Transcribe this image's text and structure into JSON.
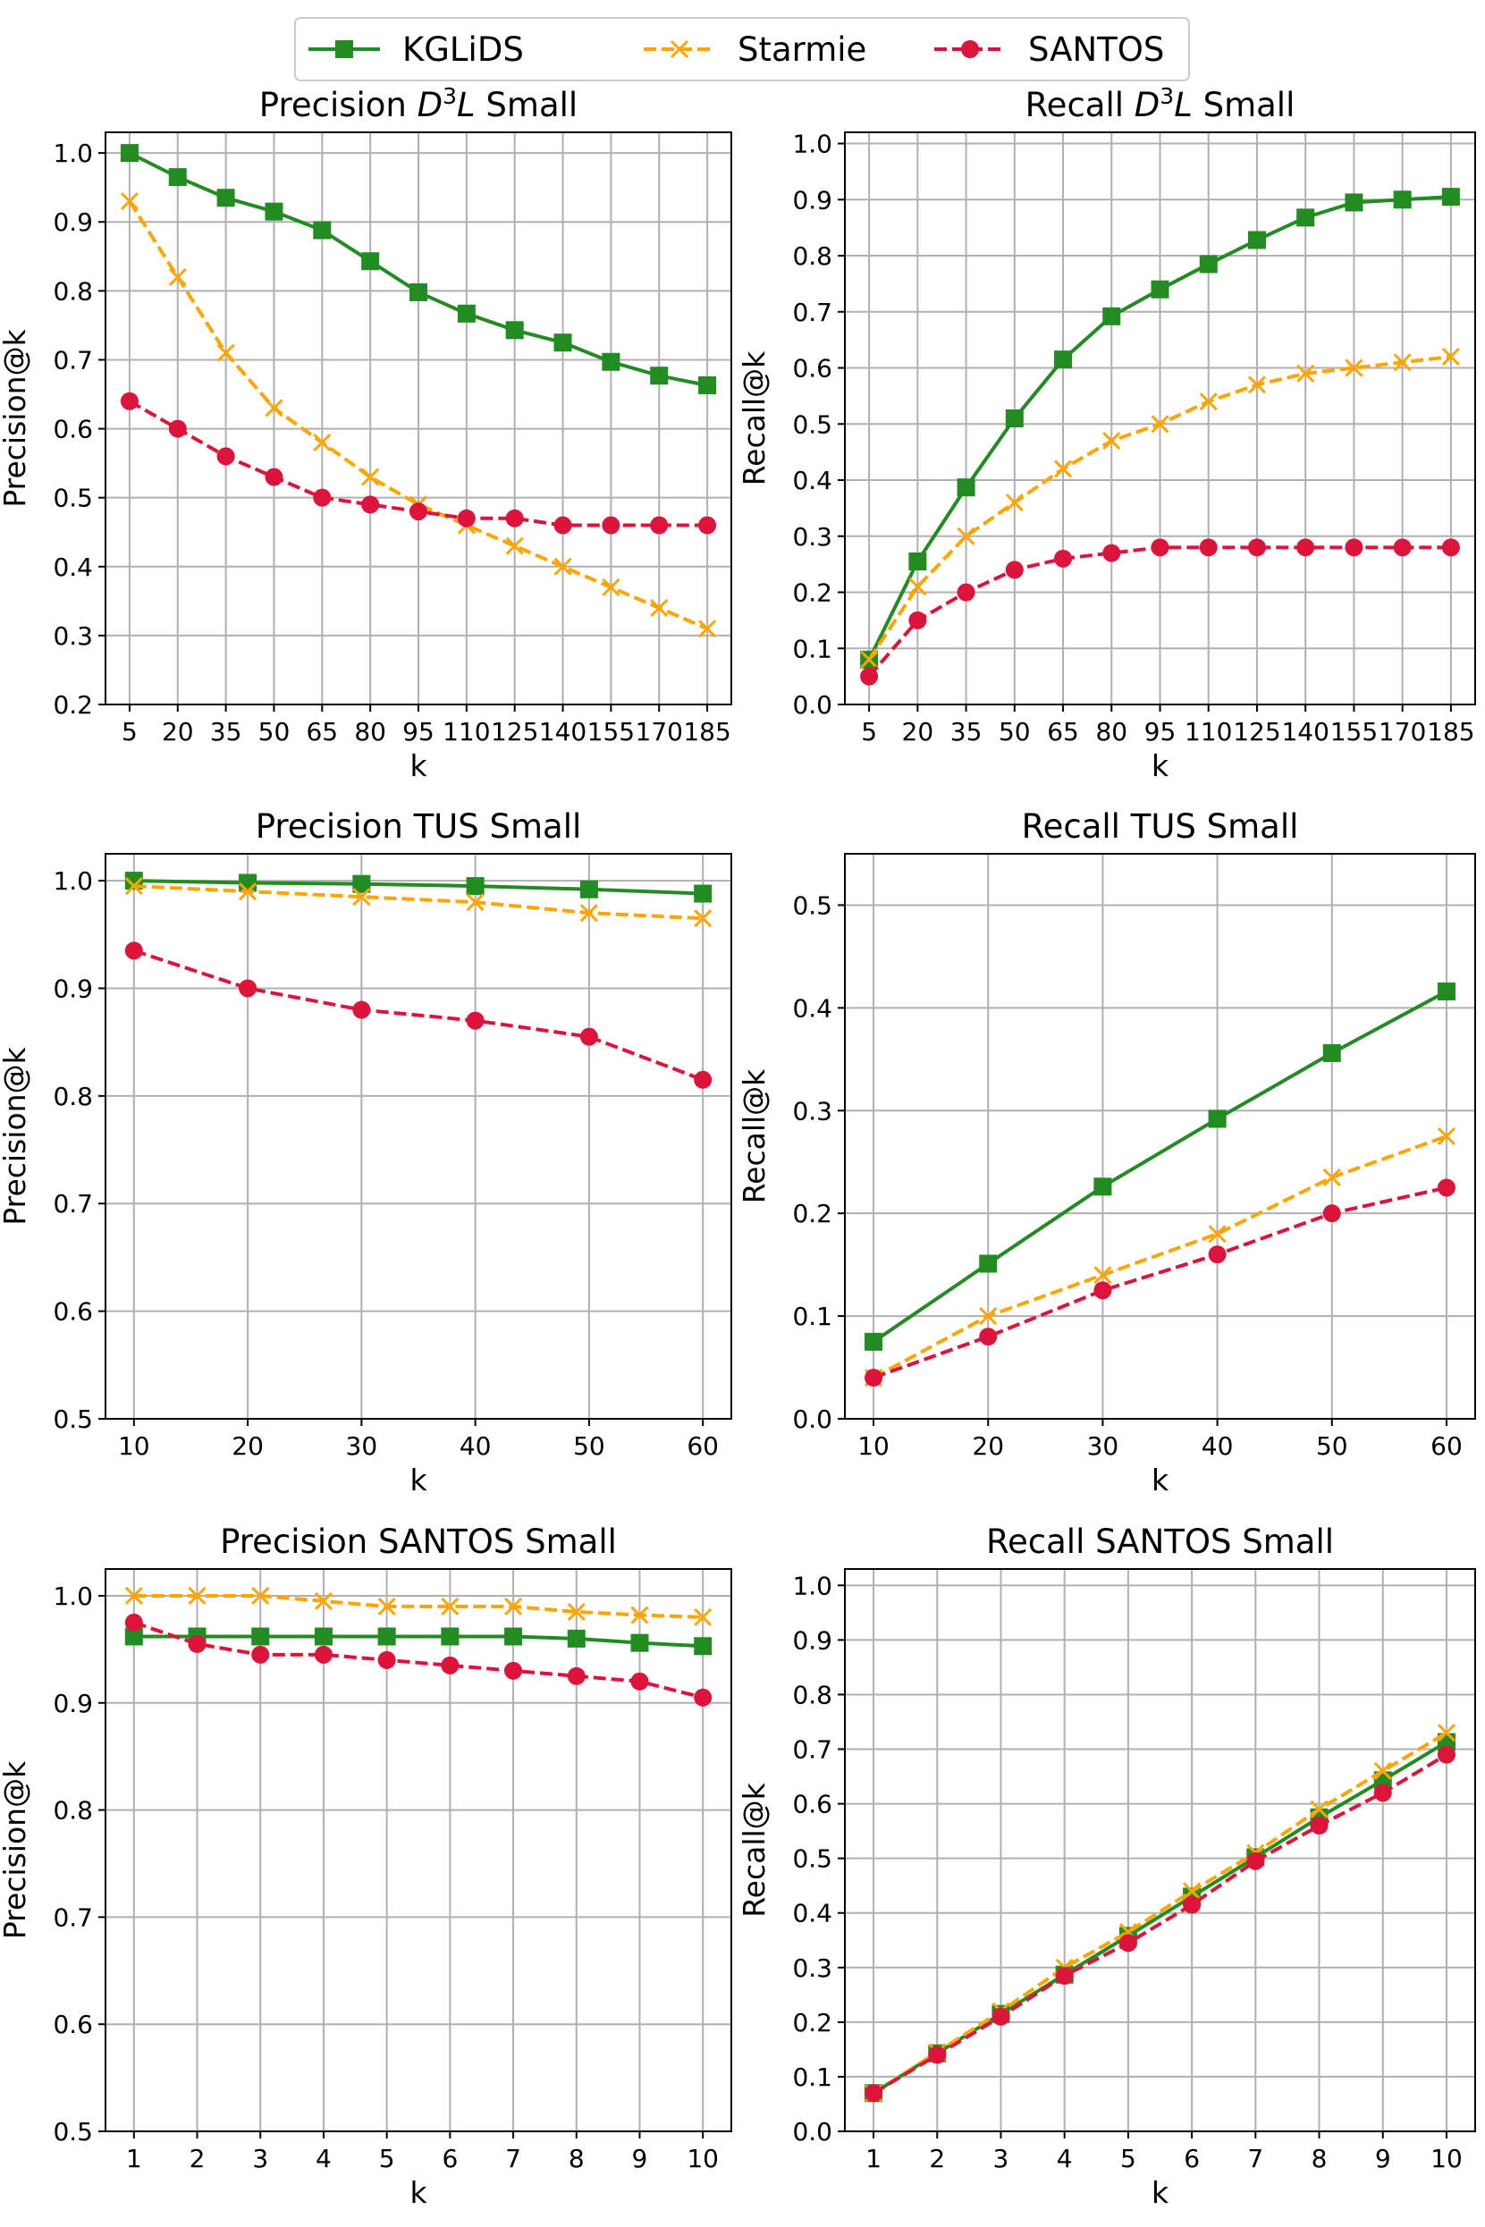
{
  "legend": [
    {
      "name": "KGLiDS",
      "color": "#228b22",
      "marker": "square",
      "dash": "solid"
    },
    {
      "name": "Starmie",
      "color": "#ffa500",
      "marker": "x",
      "dash": "dashed"
    },
    {
      "name": "SANTOS",
      "color": "#dc143c",
      "marker": "circle",
      "dash": "dashed"
    }
  ],
  "chart_data": [
    {
      "type": "line",
      "title": "Precision D3L Small",
      "title_parts": {
        "prefix": "Precision ",
        "symbol": "D",
        "superscript": "3",
        "symbol2": "L",
        "suffix": " Small"
      },
      "xlabel": "k",
      "ylabel": "Precision@k",
      "xcategorical": true,
      "x": [
        5,
        20,
        35,
        50,
        65,
        80,
        95,
        110,
        125,
        140,
        155,
        170,
        185
      ],
      "xticks": [
        5,
        20,
        35,
        50,
        65,
        80,
        95,
        110,
        125,
        140,
        155,
        170,
        185
      ],
      "ylim": [
        0.2,
        1.03
      ],
      "yticks": [
        0.2,
        0.3,
        0.4,
        0.5,
        0.6,
        0.7,
        0.8,
        0.9,
        1.0
      ],
      "series": [
        {
          "name": "KGLiDS",
          "values": [
            1.0,
            0.965,
            0.935,
            0.915,
            0.888,
            0.843,
            0.798,
            0.767,
            0.743,
            0.725,
            0.697,
            0.677,
            0.663
          ]
        },
        {
          "name": "Starmie",
          "values": [
            0.93,
            0.82,
            0.71,
            0.63,
            0.58,
            0.53,
            0.49,
            0.46,
            0.43,
            0.4,
            0.37,
            0.34,
            0.31
          ]
        },
        {
          "name": "SANTOS",
          "values": [
            0.64,
            0.6,
            0.56,
            0.53,
            0.5,
            0.49,
            0.48,
            0.47,
            0.47,
            0.46,
            0.46,
            0.46,
            0.46
          ]
        }
      ]
    },
    {
      "type": "line",
      "title": "Recall D3L Small",
      "title_parts": {
        "prefix": "Recall ",
        "symbol": "D",
        "superscript": "3",
        "symbol2": "L",
        "suffix": " Small"
      },
      "xlabel": "k",
      "ylabel": "Recall@k",
      "xcategorical": true,
      "x": [
        5,
        20,
        35,
        50,
        65,
        80,
        95,
        110,
        125,
        140,
        155,
        170,
        185
      ],
      "xticks": [
        5,
        20,
        35,
        50,
        65,
        80,
        95,
        110,
        125,
        140,
        155,
        170,
        185
      ],
      "ylim": [
        0.0,
        1.02
      ],
      "yticks": [
        0.0,
        0.1,
        0.2,
        0.3,
        0.4,
        0.5,
        0.6,
        0.7,
        0.8,
        0.9,
        1.0
      ],
      "series": [
        {
          "name": "KGLiDS",
          "values": [
            0.08,
            0.255,
            0.387,
            0.51,
            0.615,
            0.692,
            0.74,
            0.785,
            0.828,
            0.868,
            0.895,
            0.9,
            0.905
          ]
        },
        {
          "name": "Starmie",
          "values": [
            0.08,
            0.21,
            0.3,
            0.36,
            0.42,
            0.47,
            0.5,
            0.54,
            0.57,
            0.59,
            0.6,
            0.61,
            0.62
          ]
        },
        {
          "name": "SANTOS",
          "values": [
            0.05,
            0.15,
            0.2,
            0.24,
            0.26,
            0.27,
            0.28,
            0.28,
            0.28,
            0.28,
            0.28,
            0.28,
            0.28
          ]
        }
      ]
    },
    {
      "type": "line",
      "title": "Precision TUS Small",
      "xlabel": "k",
      "ylabel": "Precision@k",
      "xcategorical": false,
      "x": [
        10,
        20,
        30,
        40,
        50,
        60
      ],
      "xlim": [
        7.5,
        62.5
      ],
      "xticks": [
        10,
        20,
        30,
        40,
        50,
        60
      ],
      "ylim": [
        0.5,
        1.025
      ],
      "yticks": [
        0.5,
        0.6,
        0.7,
        0.8,
        0.9,
        1.0
      ],
      "series": [
        {
          "name": "KGLiDS",
          "values": [
            1.0,
            0.998,
            0.997,
            0.995,
            0.992,
            0.988
          ]
        },
        {
          "name": "Starmie",
          "values": [
            0.995,
            0.99,
            0.985,
            0.98,
            0.97,
            0.965
          ]
        },
        {
          "name": "SANTOS",
          "values": [
            0.935,
            0.9,
            0.88,
            0.87,
            0.855,
            0.815
          ]
        }
      ]
    },
    {
      "type": "line",
      "title": "Recall TUS Small",
      "xlabel": "k",
      "ylabel": "Recall@k",
      "xcategorical": false,
      "x": [
        10,
        20,
        30,
        40,
        50,
        60
      ],
      "xlim": [
        7.5,
        62.5
      ],
      "xticks": [
        10,
        20,
        30,
        40,
        50,
        60
      ],
      "ylim": [
        0.0,
        0.55
      ],
      "yticks": [
        0.0,
        0.1,
        0.2,
        0.3,
        0.4,
        0.5
      ],
      "series": [
        {
          "name": "KGLiDS",
          "values": [
            0.075,
            0.151,
            0.226,
            0.292,
            0.356,
            0.416
          ]
        },
        {
          "name": "Starmie",
          "values": [
            0.04,
            0.1,
            0.14,
            0.18,
            0.235,
            0.275
          ]
        },
        {
          "name": "SANTOS",
          "values": [
            0.04,
            0.08,
            0.125,
            0.16,
            0.2,
            0.225
          ]
        }
      ]
    },
    {
      "type": "line",
      "title": "Precision SANTOS Small",
      "xlabel": "k",
      "ylabel": "Precision@k",
      "xcategorical": false,
      "x": [
        1,
        2,
        3,
        4,
        5,
        6,
        7,
        8,
        9,
        10
      ],
      "xlim": [
        0.55,
        10.45
      ],
      "xticks": [
        1,
        2,
        3,
        4,
        5,
        6,
        7,
        8,
        9,
        10
      ],
      "ylim": [
        0.5,
        1.025
      ],
      "yticks": [
        0.5,
        0.6,
        0.7,
        0.8,
        0.9,
        1.0
      ],
      "series": [
        {
          "name": "KGLiDS",
          "values": [
            0.962,
            0.962,
            0.962,
            0.962,
            0.962,
            0.962,
            0.962,
            0.96,
            0.956,
            0.953
          ]
        },
        {
          "name": "Starmie",
          "values": [
            1.0,
            1.0,
            1.0,
            0.995,
            0.99,
            0.99,
            0.99,
            0.985,
            0.982,
            0.98
          ]
        },
        {
          "name": "SANTOS",
          "values": [
            0.975,
            0.955,
            0.945,
            0.945,
            0.94,
            0.935,
            0.93,
            0.925,
            0.92,
            0.905
          ]
        }
      ]
    },
    {
      "type": "line",
      "title": "Recall SANTOS Small",
      "xlabel": "k",
      "ylabel": "Recall@k",
      "xcategorical": false,
      "x": [
        1,
        2,
        3,
        4,
        5,
        6,
        7,
        8,
        9,
        10
      ],
      "xlim": [
        0.55,
        10.45
      ],
      "xticks": [
        1,
        2,
        3,
        4,
        5,
        6,
        7,
        8,
        9,
        10
      ],
      "ylim": [
        0.0,
        1.03
      ],
      "yticks": [
        0.0,
        0.1,
        0.2,
        0.3,
        0.4,
        0.5,
        0.6,
        0.7,
        0.8,
        0.9,
        1.0
      ],
      "series": [
        {
          "name": "KGLiDS",
          "values": [
            0.07,
            0.143,
            0.215,
            0.287,
            0.358,
            0.43,
            0.502,
            0.575,
            0.643,
            0.713
          ]
        },
        {
          "name": "Starmie",
          "values": [
            0.07,
            0.145,
            0.22,
            0.3,
            0.365,
            0.44,
            0.51,
            0.59,
            0.66,
            0.73
          ]
        },
        {
          "name": "SANTOS",
          "values": [
            0.07,
            0.14,
            0.21,
            0.285,
            0.345,
            0.415,
            0.495,
            0.56,
            0.62,
            0.69
          ]
        }
      ]
    }
  ]
}
